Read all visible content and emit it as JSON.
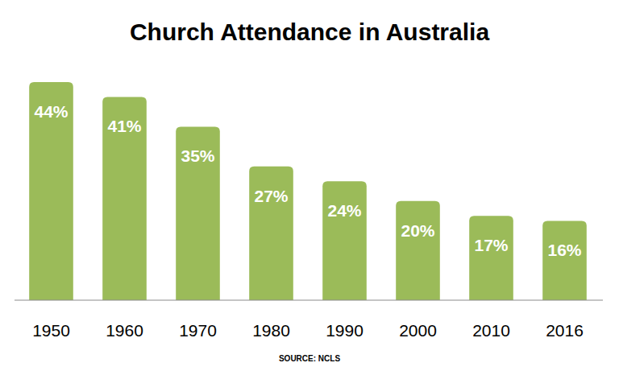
{
  "chart_data": {
    "type": "bar",
    "title": "Church Attendance in Australia",
    "categories": [
      "1950",
      "1960",
      "1970",
      "1980",
      "1990",
      "2000",
      "2010",
      "2016"
    ],
    "values": [
      44,
      41,
      35,
      27,
      24,
      20,
      17,
      16
    ],
    "value_labels": [
      "44%",
      "41%",
      "35%",
      "27%",
      "24%",
      "20%",
      "17%",
      "16%"
    ],
    "color": "#9bbb59",
    "ylim": [
      0,
      50
    ],
    "data_labels": true,
    "tick_labels": "x",
    "grid": false,
    "source": "SOURCE: NCLS"
  }
}
